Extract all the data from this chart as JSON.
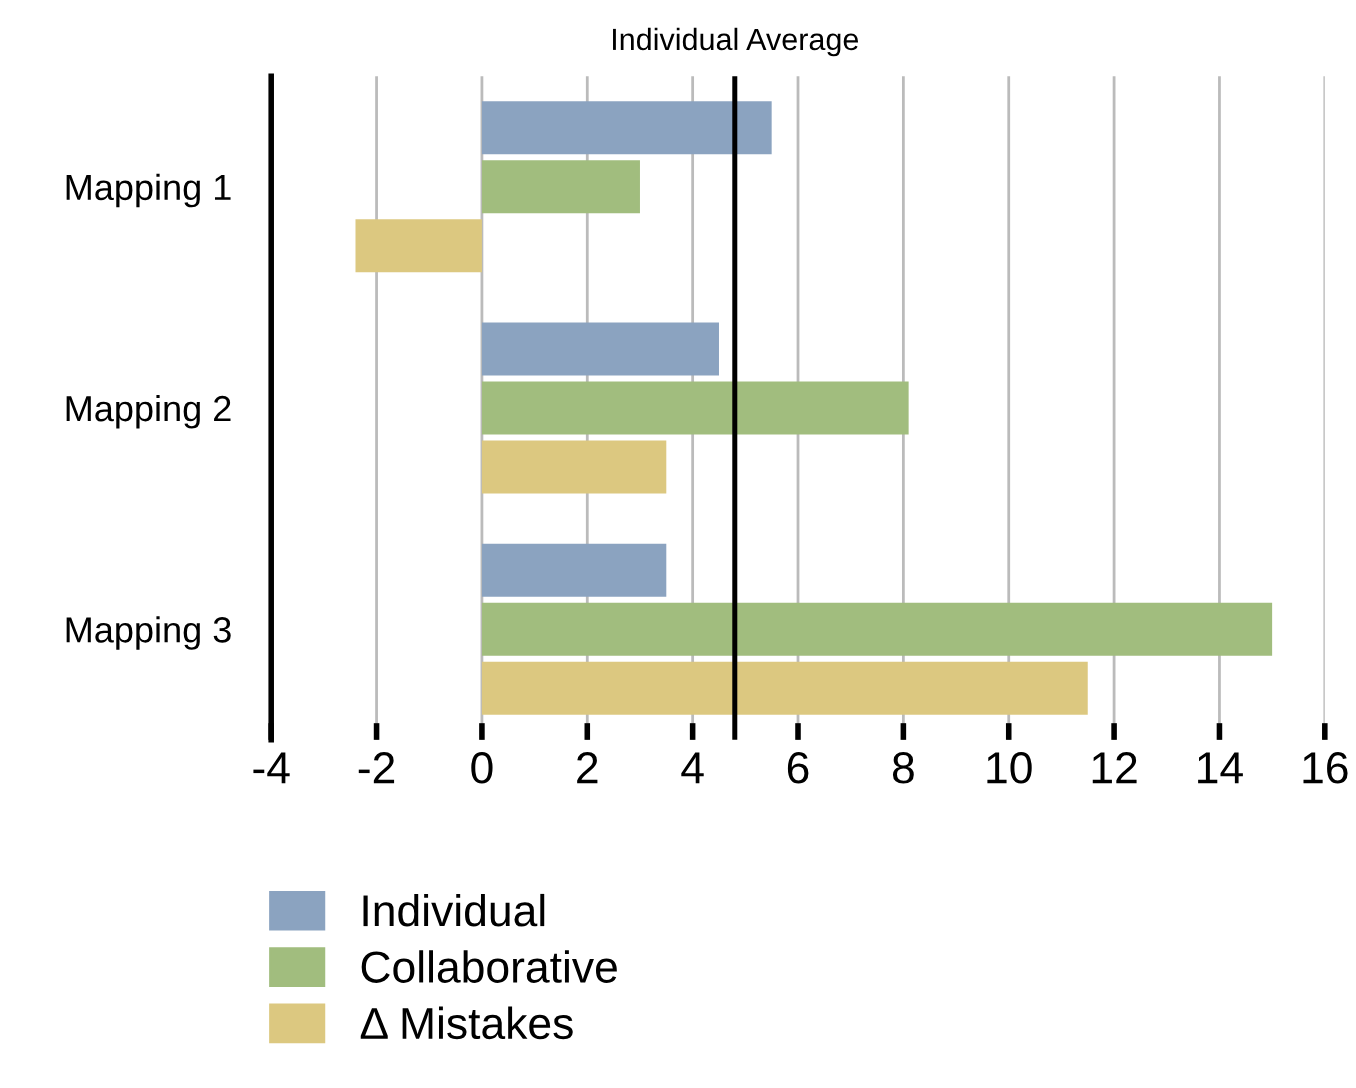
{
  "chart_data": {
    "type": "bar",
    "orientation": "horizontal",
    "categories": [
      "Mapping 1",
      "Mapping 2",
      "Mapping 3"
    ],
    "series": [
      {
        "name": "Individual",
        "color": "#8ba3c0",
        "values": [
          5.5,
          4.5,
          3.5
        ]
      },
      {
        "name": "Collaborative",
        "color": "#a1bd7e",
        "values": [
          3.0,
          8.1,
          15
        ]
      },
      {
        "name": "Δ Mistakes",
        "color": "#dcc880",
        "values": [
          -2.4,
          3.5,
          11.5
        ]
      }
    ],
    "xlim": [
      -4,
      16
    ],
    "xticks": [
      -4,
      -2,
      0,
      2,
      4,
      6,
      8,
      10,
      12,
      14,
      16
    ],
    "ref_lines": [
      {
        "axis": "x",
        "value": 4.8,
        "label": "Individual Average",
        "color": "#000000"
      }
    ],
    "grid": "x",
    "legend": "bottom"
  }
}
